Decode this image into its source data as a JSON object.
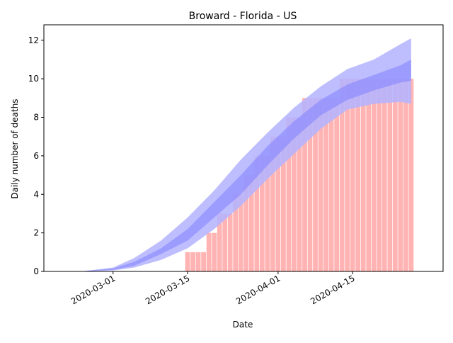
{
  "chart_data": {
    "type": "bar",
    "title": "Broward - Florida - US",
    "xlabel": "Date",
    "ylabel": "Daily number of deaths",
    "xlim": [
      "2020-02-17",
      "2020-05-02"
    ],
    "ylim": [
      0,
      12.8
    ],
    "yticks": [
      0,
      2,
      4,
      6,
      8,
      10,
      12
    ],
    "xticks": [
      "2020-03-01",
      "2020-03-15",
      "2020-04-01",
      "2020-04-15"
    ],
    "grid": false,
    "colors": {
      "bars": "#ffb3b3",
      "band_outer": "#b3b3ff",
      "band_inner": "#8080ff",
      "axes": "#000000"
    },
    "series": [
      {
        "type": "bar",
        "x": [
          "2020-03-15",
          "2020-03-16",
          "2020-03-17",
          "2020-03-18",
          "2020-03-19",
          "2020-03-20",
          "2020-03-21",
          "2020-03-22",
          "2020-03-23",
          "2020-03-24",
          "2020-03-25",
          "2020-03-26",
          "2020-03-27",
          "2020-03-28",
          "2020-03-29",
          "2020-03-30",
          "2020-03-31",
          "2020-04-01",
          "2020-04-02",
          "2020-04-03",
          "2020-04-04",
          "2020-04-05",
          "2020-04-06",
          "2020-04-07",
          "2020-04-08",
          "2020-04-09",
          "2020-04-10",
          "2020-04-11",
          "2020-04-12",
          "2020-04-13",
          "2020-04-14",
          "2020-04-15",
          "2020-04-16",
          "2020-04-17",
          "2020-04-18",
          "2020-04-19",
          "2020-04-20",
          "2020-04-21",
          "2020-04-22",
          "2020-04-23",
          "2020-04-24",
          "2020-04-25",
          "2020-04-26"
        ],
        "values": [
          1,
          1,
          1,
          1,
          2,
          2,
          3,
          3,
          3,
          4,
          4,
          5,
          5,
          6,
          6,
          6,
          7,
          7,
          7,
          8,
          8,
          8,
          9,
          9,
          9,
          9,
          9,
          9,
          9,
          10,
          10,
          10,
          10,
          10,
          10,
          10,
          10,
          10,
          10,
          10,
          10,
          10,
          10
        ]
      },
      {
        "type": "band",
        "x": [
          "2020-02-24",
          "2020-03-01",
          "2020-03-05",
          "2020-03-10",
          "2020-03-15",
          "2020-03-20",
          "2020-03-25",
          "2020-03-30",
          "2020-04-04",
          "2020-04-09",
          "2020-04-14",
          "2020-04-19",
          "2020-04-24",
          "2020-04-26"
        ],
        "lower": [
          0,
          0.05,
          0.2,
          0.6,
          1.2,
          2.2,
          3.4,
          4.8,
          6.1,
          7.4,
          8.4,
          8.7,
          8.8,
          8.7
        ],
        "upper": [
          0,
          0.2,
          0.7,
          1.6,
          2.8,
          4.2,
          5.8,
          7.2,
          8.5,
          9.6,
          10.5,
          11.0,
          11.8,
          12.1
        ]
      },
      {
        "type": "band",
        "x": [
          "2020-02-24",
          "2020-03-01",
          "2020-03-05",
          "2020-03-10",
          "2020-03-15",
          "2020-03-20",
          "2020-03-25",
          "2020-03-30",
          "2020-04-04",
          "2020-04-09",
          "2020-04-14",
          "2020-04-19",
          "2020-04-24",
          "2020-04-26"
        ],
        "lower": [
          0,
          0.08,
          0.3,
          0.9,
          1.6,
          2.8,
          4.0,
          5.5,
          6.9,
          8.1,
          8.9,
          9.4,
          9.8,
          9.9
        ],
        "upper": [
          0,
          0.15,
          0.5,
          1.2,
          2.2,
          3.6,
          5.0,
          6.5,
          7.8,
          8.9,
          9.7,
          10.2,
          10.7,
          11.0
        ]
      }
    ]
  }
}
